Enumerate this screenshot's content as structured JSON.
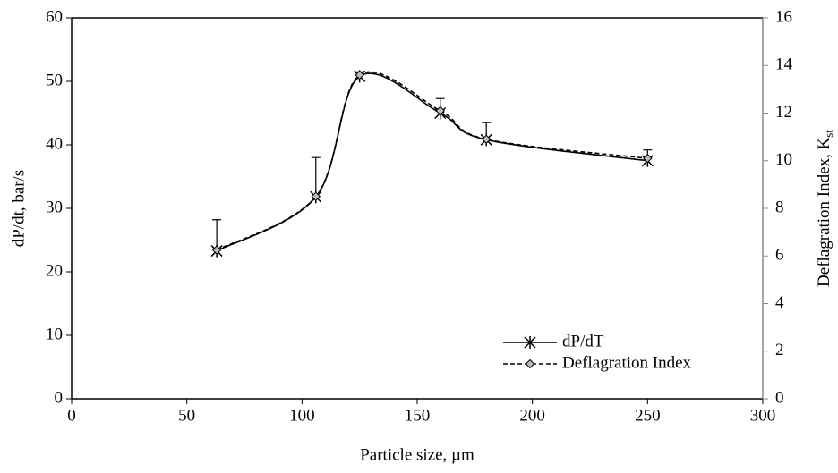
{
  "chart_data": {
    "type": "line",
    "x_label": "Particle size, µm",
    "y_label": "dP/dt, bar/s",
    "y2_label": {
      "text": "Deflagration Index, K",
      "subscript": "st"
    },
    "x": [
      63,
      106,
      125,
      160,
      180,
      250
    ],
    "series": [
      {
        "name": "dP/dT",
        "color": "#000000",
        "marker": "asterisk",
        "dash": "solid",
        "axis": "y",
        "values": [
          23.3,
          31.8,
          50.8,
          45.0,
          40.8,
          37.5
        ],
        "errors": [
          4.9,
          6.2,
          0.7,
          2.3,
          2.7,
          1.7
        ]
      },
      {
        "name": "Deflagration Index",
        "color": "#000000",
        "marker": "diamond",
        "dash": "dashed",
        "axis": "y2",
        "values": [
          6.25,
          8.5,
          13.6,
          12.1,
          10.9,
          10.1
        ]
      }
    ],
    "xlim": [
      0,
      300
    ],
    "xticks": [
      0,
      50,
      100,
      150,
      200,
      250,
      300
    ],
    "ylim": [
      0,
      60
    ],
    "yticks": [
      0,
      10,
      20,
      30,
      40,
      50,
      60
    ],
    "y2lim": [
      0,
      16
    ],
    "y2ticks": [
      0,
      2,
      4,
      6,
      8,
      10,
      12,
      14,
      16
    ],
    "legend": "bottom-right",
    "grid": false
  }
}
